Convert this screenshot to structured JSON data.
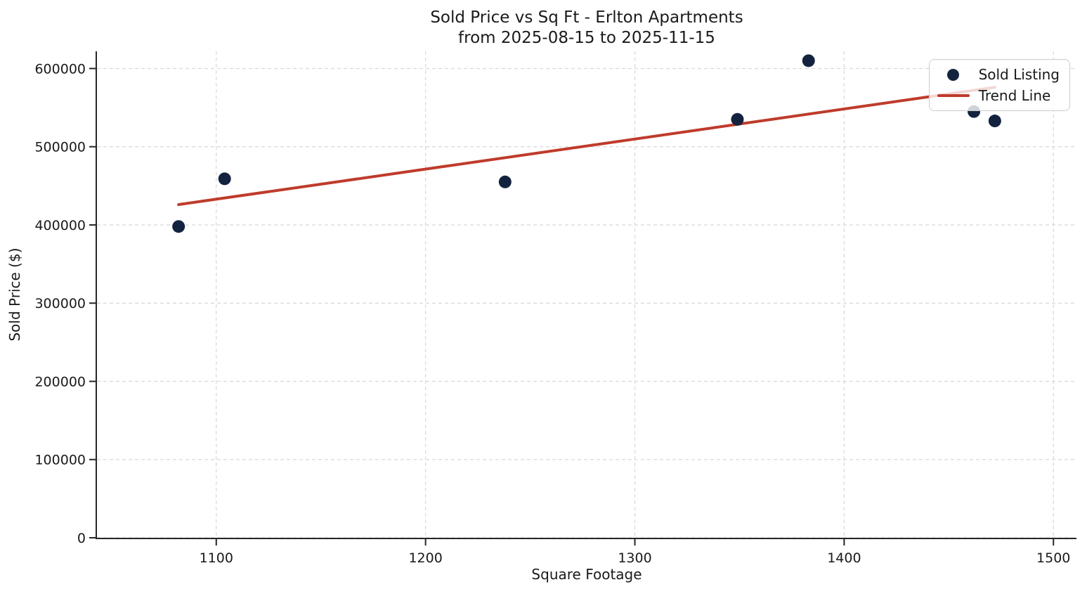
{
  "chart_data": {
    "type": "scatter",
    "title": "Sold Price vs Sq Ft - Erlton Apartments",
    "title_line2": "from 2025-08-15 to 2025-11-15",
    "xlabel": "Square Footage",
    "ylabel": "Sold Price ($)",
    "xlim": [
      1043,
      1511
    ],
    "ylim": [
      0,
      622000
    ],
    "xticks": [
      1100,
      1200,
      1300,
      1400,
      1500
    ],
    "yticks": [
      0,
      100000,
      200000,
      300000,
      400000,
      500000,
      600000
    ],
    "grid": true,
    "grid_style": "dashed",
    "legend_position": "upper-right",
    "colors": {
      "point": "#13233f",
      "trend": "#bf3b2b",
      "grid": "#d8d8d8",
      "axis": "#262626",
      "text": "#1a1a1a",
      "legend_border": "#cccccc",
      "legend_bg": "rgba(255,255,255,0.8)"
    },
    "series": [
      {
        "name": "Sold Listing",
        "kind": "scatter",
        "points": [
          [
            1082,
            398000
          ],
          [
            1104,
            459000
          ],
          [
            1238,
            455000
          ],
          [
            1349,
            535000
          ],
          [
            1383,
            610000
          ],
          [
            1462,
            545000
          ],
          [
            1472,
            533000
          ]
        ]
      },
      {
        "name": "Trend Line",
        "kind": "line",
        "points": [
          [
            1082,
            426000
          ],
          [
            1472,
            576000
          ]
        ]
      }
    ]
  }
}
